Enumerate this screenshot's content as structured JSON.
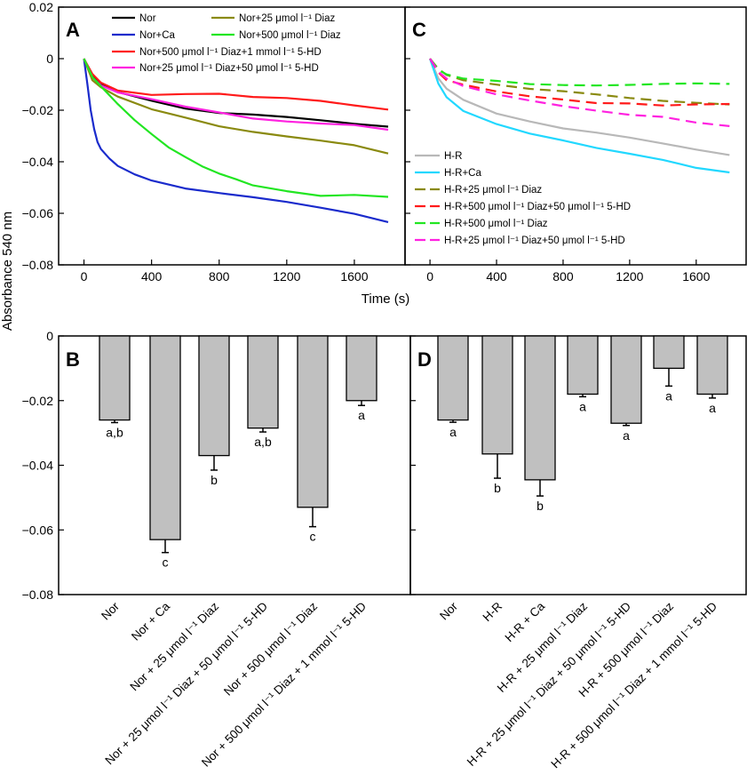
{
  "y_axis_title": "Absorbance 540 nm",
  "x_axis_title": "Time (s)",
  "chart_data": [
    {
      "panel": "A",
      "type": "line",
      "xlim": [
        -150,
        1900
      ],
      "ylim": [
        -0.08,
        0.02
      ],
      "x_ticks": [
        "0",
        "400",
        "800",
        "1200",
        "1600"
      ],
      "y_ticks": [
        "0.02",
        "0",
        "−0.02",
        "−0.04",
        "−0.06",
        "−0.08"
      ],
      "legend_position": "top",
      "series": [
        {
          "name": "Nor",
          "color": "#000000",
          "dashed": false,
          "x": [
            0,
            50,
            100,
            200,
            400,
            600,
            800,
            1000,
            1200,
            1400,
            1600,
            1800
          ],
          "y": [
            0,
            -0.007,
            -0.01,
            -0.013,
            -0.016,
            -0.019,
            -0.021,
            -0.022,
            -0.023,
            -0.024,
            -0.025,
            -0.026
          ]
        },
        {
          "name": "Nor+Ca",
          "color": "#1a2bcc",
          "dashed": false,
          "x": [
            0,
            20,
            40,
            60,
            80,
            100,
            150,
            200,
            300,
            400,
            600,
            800,
            1000,
            1200,
            1400,
            1600,
            1800
          ],
          "y": [
            0,
            -0.01,
            -0.02,
            -0.027,
            -0.032,
            -0.035,
            -0.039,
            -0.042,
            -0.045,
            -0.047,
            -0.05,
            -0.052,
            -0.054,
            -0.056,
            -0.058,
            -0.06,
            -0.063
          ]
        },
        {
          "name": "Nor+500 μmol l⁻¹ Diaz+1 mmol l⁻¹ 5-HD",
          "color": "#ff1a1a",
          "dashed": false,
          "x": [
            0,
            50,
            100,
            200,
            400,
            600,
            800,
            1000,
            1200,
            1400,
            1600,
            1800
          ],
          "y": [
            0,
            -0.006,
            -0.009,
            -0.012,
            -0.014,
            -0.014,
            -0.014,
            -0.015,
            -0.015,
            -0.016,
            -0.018,
            -0.02
          ]
        },
        {
          "name": "Nor+25 μmol l⁻¹ Diaz+50 μmol l⁻¹ 5-HD",
          "color": "#ff22e0",
          "dashed": false,
          "x": [
            0,
            50,
            100,
            200,
            400,
            600,
            800,
            1000,
            1200,
            1400,
            1600,
            1800
          ],
          "y": [
            0,
            -0.007,
            -0.01,
            -0.013,
            -0.016,
            -0.019,
            -0.021,
            -0.023,
            -0.024,
            -0.025,
            -0.026,
            -0.028
          ]
        },
        {
          "name": "Nor+25 μmol l⁻¹ Diaz",
          "color": "#8a8a10",
          "dashed": false,
          "x": [
            0,
            50,
            100,
            200,
            400,
            600,
            800,
            1000,
            1200,
            1400,
            1600,
            1800
          ],
          "y": [
            0,
            -0.008,
            -0.011,
            -0.015,
            -0.02,
            -0.023,
            -0.026,
            -0.028,
            -0.03,
            -0.032,
            -0.034,
            -0.037
          ]
        },
        {
          "name": "Nor+500 μmol l⁻¹ Diaz",
          "color": "#22e622",
          "dashed": false,
          "x": [
            0,
            50,
            100,
            200,
            300,
            400,
            500,
            600,
            700,
            800,
            900,
            1000,
            1200,
            1400,
            1600,
            1800
          ],
          "y": [
            0,
            -0.007,
            -0.011,
            -0.018,
            -0.024,
            -0.029,
            -0.034,
            -0.038,
            -0.042,
            -0.045,
            -0.047,
            -0.049,
            -0.051,
            -0.053,
            -0.053,
            -0.054
          ]
        }
      ]
    },
    {
      "panel": "C",
      "type": "line",
      "xlim": [
        -150,
        1900
      ],
      "ylim": [
        -0.08,
        0.02
      ],
      "x_ticks": [
        "0",
        "400",
        "800",
        "1200",
        "1600"
      ],
      "legend_position": "bottom-left",
      "series": [
        {
          "name": "H-R",
          "color": "#b8b8b8",
          "dashed": false,
          "x": [
            0,
            50,
            100,
            200,
            400,
            600,
            800,
            1000,
            1200,
            1400,
            1600,
            1800
          ],
          "y": [
            0,
            -0.008,
            -0.012,
            -0.016,
            -0.021,
            -0.024,
            -0.027,
            -0.029,
            -0.031,
            -0.033,
            -0.035,
            -0.037
          ]
        },
        {
          "name": "H-R+Ca",
          "color": "#22d8ff",
          "dashed": false,
          "x": [
            0,
            50,
            100,
            200,
            400,
            600,
            800,
            1000,
            1200,
            1400,
            1600,
            1800
          ],
          "y": [
            0,
            -0.01,
            -0.015,
            -0.02,
            -0.025,
            -0.029,
            -0.032,
            -0.035,
            -0.037,
            -0.039,
            -0.042,
            -0.044
          ]
        },
        {
          "name": "H-R+25 μmol l⁻¹ Diaz",
          "color": "#8a8a10",
          "dashed": true,
          "x": [
            0,
            50,
            100,
            200,
            400,
            600,
            800,
            1000,
            1200,
            1400,
            1600,
            1800
          ],
          "y": [
            0,
            -0.004,
            -0.006,
            -0.008,
            -0.01,
            -0.012,
            -0.013,
            -0.014,
            -0.015,
            -0.016,
            -0.017,
            -0.018
          ]
        },
        {
          "name": "H-R+500 μmol l⁻¹ Diaz+50 μmol l⁻¹ 5-HD",
          "color": "#ff1a1a",
          "dashed": true,
          "x": [
            0,
            50,
            100,
            200,
            400,
            600,
            800,
            1000,
            1200,
            1400,
            1600,
            1800
          ],
          "y": [
            0,
            -0.005,
            -0.008,
            -0.01,
            -0.013,
            -0.015,
            -0.016,
            -0.017,
            -0.017,
            -0.018,
            -0.018,
            -0.018
          ]
        },
        {
          "name": "H-R+500 μmol l⁻¹ Diaz",
          "color": "#22e622",
          "dashed": true,
          "x": [
            0,
            50,
            100,
            200,
            400,
            600,
            800,
            1000,
            1200,
            1400,
            1600,
            1800
          ],
          "y": [
            0,
            -0.004,
            -0.006,
            -0.008,
            -0.009,
            -0.01,
            -0.01,
            -0.01,
            -0.01,
            -0.01,
            -0.01,
            -0.01
          ]
        },
        {
          "name": "H-R+25 μmol l⁻¹ Diaz+50 μmol l⁻¹ 5-HD",
          "color": "#ff22e0",
          "dashed": true,
          "x": [
            0,
            50,
            100,
            200,
            400,
            600,
            800,
            1000,
            1200,
            1400,
            1600,
            1800
          ],
          "y": [
            0,
            -0.005,
            -0.008,
            -0.011,
            -0.014,
            -0.016,
            -0.018,
            -0.02,
            -0.022,
            -0.023,
            -0.025,
            -0.026
          ]
        }
      ]
    },
    {
      "panel": "B",
      "type": "bar",
      "ylim": [
        -0.08,
        0
      ],
      "y_ticks": [
        "0",
        "−0.02",
        "−0.04",
        "−0.06",
        "−0.08"
      ],
      "bar_color": "#c0c0c0",
      "categories": [
        "Nor",
        "Nor + Ca",
        "Nor + 25 μmol l⁻¹ Diaz",
        "Nor + 25 μmol l⁻¹ Diaz + 50 μmol l⁻¹ 5-HD",
        "Nor + 500 μmol l⁻¹ Diaz",
        "Nor + 500 μmol l⁻¹ Diaz + 1 mmol l⁻¹ 5-HD"
      ],
      "values": [
        -0.026,
        -0.063,
        -0.037,
        -0.0285,
        -0.053,
        -0.02
      ],
      "errors": [
        0.0008,
        0.004,
        0.0045,
        0.0012,
        0.006,
        0.0015
      ],
      "labels": [
        "a,b",
        "c",
        "b",
        "a,b",
        "c",
        "a"
      ]
    },
    {
      "panel": "D",
      "type": "bar",
      "ylim": [
        -0.08,
        0
      ],
      "bar_color": "#c0c0c0",
      "categories": [
        "Nor",
        "H-R",
        "H-R + Ca",
        "H-R + 25 μmol l⁻¹ Diaz",
        "H-R + 25 μmol l⁻¹ Diaz + 50 μmol l⁻¹ 5-HD",
        "H-R + 500 μmol l⁻¹ Diaz",
        "H-R + 500 μmol l⁻¹ Diaz + 1 mmol l⁻¹ 5-HD"
      ],
      "values": [
        -0.026,
        -0.0365,
        -0.0445,
        -0.018,
        -0.027,
        -0.01,
        -0.018
      ],
      "errors": [
        0.0007,
        0.0075,
        0.005,
        0.0008,
        0.0007,
        0.0055,
        0.0012
      ],
      "labels": [
        "a",
        "b",
        "b",
        "a",
        "a",
        "a",
        "a"
      ]
    }
  ]
}
